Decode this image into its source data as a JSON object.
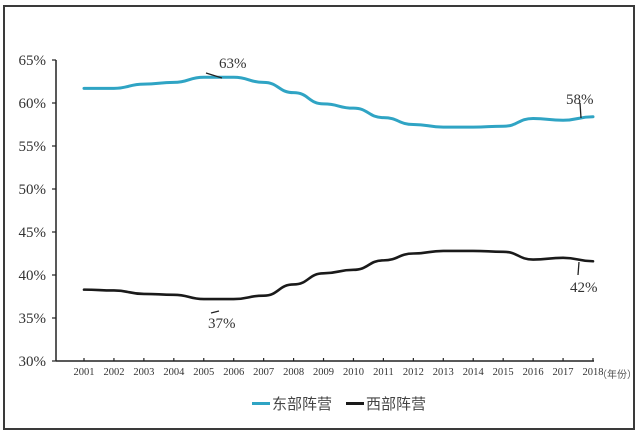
{
  "chart_data": {
    "type": "line",
    "title": "",
    "xlabel": "年份",
    "ylabel": "",
    "x": [
      2001,
      2002,
      2003,
      2004,
      2005,
      2006,
      2007,
      2008,
      2009,
      2010,
      2011,
      2012,
      2013,
      2014,
      2015,
      2016,
      2017,
      2018
    ],
    "x_tick_labels": [
      "2001",
      "2002",
      "2003",
      "2004",
      "2005",
      "2006",
      "2007",
      "2008",
      "2009",
      "2010",
      "2011",
      "2012",
      "2013",
      "2014",
      "2015",
      "2016",
      "2017",
      "2018"
    ],
    "x_unit_label": "（年份）",
    "y_tick_labels": [
      "65%",
      "60%",
      "55%",
      "50%",
      "45%",
      "40%",
      "35%",
      "30%"
    ],
    "ylim": [
      30,
      65
    ],
    "grid": false,
    "legend_position": "bottom",
    "series": [
      {
        "name": "东部阵营",
        "color": "#2fa4c4",
        "values": [
          61.7,
          61.7,
          62.2,
          62.4,
          63.0,
          63.0,
          62.4,
          61.2,
          59.9,
          59.4,
          58.3,
          57.5,
          57.2,
          57.2,
          57.3,
          58.2,
          58.0,
          58.4
        ]
      },
      {
        "name": "西部阵营",
        "color": "#1a1a1a",
        "values": [
          38.3,
          38.2,
          37.8,
          37.7,
          37.2,
          37.2,
          37.6,
          38.9,
          40.2,
          40.6,
          41.7,
          42.5,
          42.8,
          42.8,
          42.7,
          41.8,
          42.0,
          41.6
        ]
      }
    ],
    "annotations": [
      {
        "text": "63%",
        "series": "东部阵营",
        "x": 2006
      },
      {
        "text": "58%",
        "series": "东部阵营",
        "x": 2018
      },
      {
        "text": "37%",
        "series": "西部阵营",
        "x": 2006
      },
      {
        "text": "42%",
        "series": "西部阵营",
        "x": 2018
      }
    ]
  },
  "legend": {
    "items": [
      {
        "label": "东部阵营",
        "color": "#2fa4c4"
      },
      {
        "label": "西部阵营",
        "color": "#1a1a1a"
      }
    ]
  }
}
